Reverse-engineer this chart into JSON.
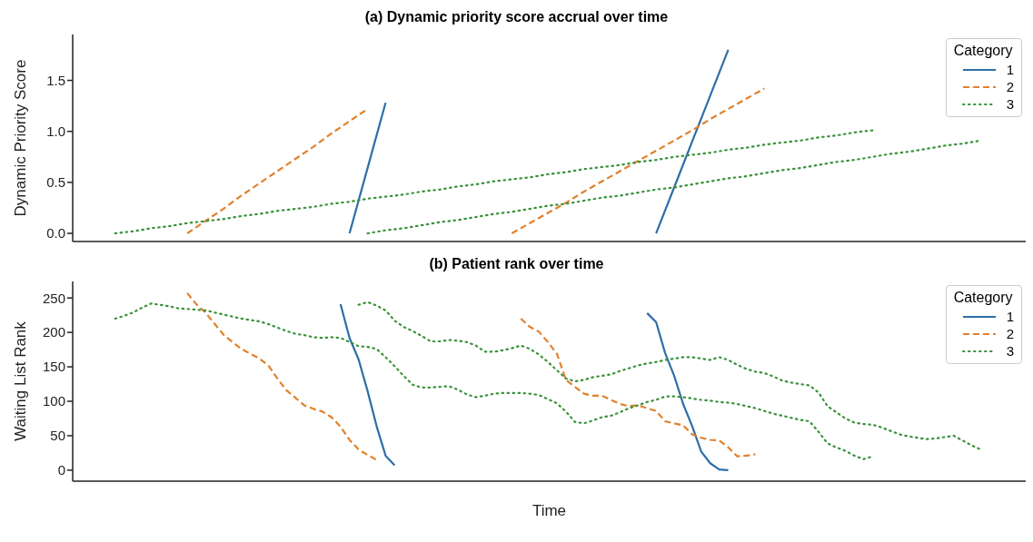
{
  "chart_data": [
    {
      "type": "line",
      "title": "(a) Dynamic priority score accrual over time",
      "ylabel": "Dynamic Priority Score",
      "legend_title": "Category",
      "legend": "top right",
      "tick_labels": "y",
      "ylim": [
        -0.08,
        1.95
      ],
      "yticks": [
        {
          "value": 0,
          "label": "0.0"
        },
        {
          "value": 0.5,
          "label": "0.5"
        },
        {
          "value": 1,
          "label": "1.0"
        },
        {
          "value": 1.5,
          "label": "1.5"
        }
      ],
      "categories": [
        null,
        null,
        null,
        null,
        null,
        null,
        null,
        null,
        null,
        null,
        null,
        null,
        null,
        null,
        null,
        null,
        null,
        null,
        null,
        null,
        null,
        null,
        null,
        null,
        null,
        null,
        null,
        null,
        null,
        null,
        null,
        null,
        null,
        null,
        null,
        null,
        null,
        null,
        null,
        null,
        null,
        null,
        null,
        null,
        null,
        null,
        null,
        null,
        null
      ],
      "series": [
        {
          "name": "1",
          "color": "#2f6ea6",
          "line_style": "solid",
          "values": [
            null,
            null,
            null,
            null,
            null,
            null,
            null,
            null,
            null,
            null,
            null,
            null,
            null,
            0,
            0.64,
            1.28,
            null,
            null,
            null,
            null,
            null,
            null,
            null,
            null,
            null,
            null,
            null,
            null,
            null,
            null,
            null,
            null,
            null,
            null,
            null,
            null,
            null,
            null,
            null,
            null,
            null,
            null,
            null,
            null,
            null,
            null,
            null,
            null,
            null
          ]
        },
        {
          "color": "#2f6ea6",
          "line_style": "solid",
          "values": [
            null,
            null,
            null,
            null,
            null,
            null,
            null,
            null,
            null,
            null,
            null,
            null,
            null,
            null,
            null,
            null,
            null,
            null,
            null,
            null,
            null,
            null,
            null,
            null,
            null,
            null,
            null,
            null,
            null,
            null,
            0,
            0.45,
            0.9,
            1.35,
            1.8,
            null,
            null,
            null,
            null,
            null,
            null,
            null,
            null,
            null,
            null,
            null,
            null,
            null,
            null
          ]
        },
        {
          "name": "2",
          "color": "#e1812c",
          "line_style": "dashed",
          "values": [
            null,
            null,
            null,
            null,
            0,
            0.12,
            0.24,
            0.37,
            0.49,
            0.61,
            0.73,
            0.85,
            0.98,
            1.1,
            1.22,
            null,
            null,
            null,
            null,
            null,
            null,
            null,
            null,
            null,
            null,
            null,
            null,
            null,
            null,
            null,
            null,
            null,
            null,
            null,
            null,
            null,
            null,
            null,
            null,
            null,
            null,
            null,
            null,
            null,
            null,
            null,
            null,
            null,
            null
          ]
        },
        {
          "color": "#e1812c",
          "line_style": "dashed",
          "values": [
            null,
            null,
            null,
            null,
            null,
            null,
            null,
            null,
            null,
            null,
            null,
            null,
            null,
            null,
            null,
            null,
            null,
            null,
            null,
            null,
            null,
            null,
            0,
            0.1,
            0.2,
            0.3,
            0.41,
            0.51,
            0.61,
            0.71,
            0.81,
            0.91,
            1.01,
            1.12,
            1.22,
            1.32,
            1.42,
            null,
            null,
            null,
            null,
            null,
            null,
            null,
            null,
            null,
            null,
            null,
            null
          ]
        },
        {
          "name": "3",
          "color": "#3a923a",
          "line_style": "dotted",
          "values": [
            0,
            0.02,
            0.05,
            0.07,
            0.1,
            0.12,
            0.14,
            0.17,
            0.19,
            0.22,
            0.24,
            0.26,
            0.29,
            0.31,
            0.34,
            0.36,
            0.38,
            0.41,
            0.43,
            0.46,
            0.48,
            0.51,
            0.53,
            0.55,
            0.58,
            0.6,
            0.63,
            0.65,
            0.67,
            0.7,
            0.72,
            0.75,
            0.77,
            0.79,
            0.82,
            0.84,
            0.87,
            0.89,
            0.91,
            0.94,
            0.96,
            0.99,
            1.01,
            null,
            null,
            null,
            null,
            null,
            null
          ]
        },
        {
          "color": "#3a923a",
          "line_style": "dotted",
          "values": [
            null,
            null,
            null,
            null,
            null,
            null,
            null,
            null,
            null,
            null,
            null,
            null,
            null,
            null,
            0,
            0.03,
            0.05,
            0.08,
            0.11,
            0.13,
            0.16,
            0.19,
            0.21,
            0.24,
            0.27,
            0.29,
            0.32,
            0.35,
            0.37,
            0.4,
            0.43,
            0.45,
            0.48,
            0.51,
            0.54,
            0.56,
            0.59,
            0.62,
            0.64,
            0.67,
            0.7,
            0.72,
            0.75,
            0.78,
            0.8,
            0.83,
            0.86,
            0.88,
            0.91
          ]
        }
      ]
    },
    {
      "type": "line",
      "title": "(b) Patient rank over time",
      "xlabel": "Time",
      "ylabel": "Waiting List Rank",
      "legend_title": "Category",
      "legend": "top right",
      "tick_labels": "y",
      "ylim": [
        -16,
        274
      ],
      "yticks": [
        0,
        50,
        100,
        150,
        200,
        250
      ],
      "categories": [
        null,
        null,
        null,
        null,
        null,
        null,
        null,
        null,
        null,
        null,
        null,
        null,
        null,
        null,
        null,
        null,
        null,
        null,
        null,
        null,
        null,
        null,
        null,
        null,
        null,
        null,
        null,
        null,
        null,
        null,
        null,
        null,
        null,
        null,
        null,
        null,
        null,
        null,
        null,
        null,
        null,
        null,
        null,
        null,
        null,
        null,
        null,
        null,
        null,
        null,
        null,
        null,
        null,
        null,
        null,
        null,
        null,
        null,
        null,
        null,
        null,
        null,
        null,
        null,
        null,
        null,
        null,
        null,
        null,
        null,
        null,
        null,
        null,
        null,
        null,
        null,
        null,
        null,
        null,
        null,
        null,
        null,
        null,
        null,
        null,
        null,
        null,
        null,
        null,
        null,
        null,
        null,
        null,
        null,
        null,
        null,
        null
      ],
      "series": [
        {
          "name": "1",
          "color": "#2f6ea6",
          "line_style": "solid",
          "values": [
            null,
            null,
            null,
            null,
            null,
            null,
            null,
            null,
            null,
            null,
            null,
            null,
            null,
            null,
            null,
            null,
            null,
            null,
            null,
            null,
            null,
            null,
            null,
            null,
            null,
            241,
            192,
            161,
            115,
            64,
            21,
            7,
            null,
            null,
            null,
            null,
            null,
            null,
            null,
            null,
            null,
            null,
            null,
            null,
            null,
            null,
            null,
            null,
            null,
            null,
            null,
            null,
            null,
            null,
            null,
            null,
            null,
            null,
            null,
            null,
            null,
            null,
            null,
            null,
            null,
            null,
            null,
            null,
            null,
            null,
            null,
            null,
            null,
            null,
            null,
            null,
            null,
            null,
            null,
            null,
            null,
            null,
            null,
            null,
            null,
            null,
            null,
            null,
            null,
            null,
            null,
            null,
            null,
            null,
            null,
            null,
            null
          ]
        },
        {
          "color": "#2f6ea6",
          "line_style": "solid",
          "values": [
            null,
            null,
            null,
            null,
            null,
            null,
            null,
            null,
            null,
            null,
            null,
            null,
            null,
            null,
            null,
            null,
            null,
            null,
            null,
            null,
            null,
            null,
            null,
            null,
            null,
            null,
            null,
            null,
            null,
            null,
            null,
            null,
            null,
            null,
            null,
            null,
            null,
            null,
            null,
            null,
            null,
            null,
            null,
            null,
            null,
            null,
            null,
            null,
            null,
            null,
            null,
            null,
            null,
            null,
            null,
            null,
            null,
            null,
            null,
            228,
            215,
            170,
            137,
            96,
            64,
            27,
            10,
            1,
            0,
            null,
            null,
            null,
            null,
            null,
            null,
            null,
            null,
            null,
            null,
            null,
            null,
            null,
            null,
            null,
            null,
            null,
            null,
            null,
            null,
            null,
            null,
            null,
            null,
            null,
            null,
            null,
            null
          ]
        },
        {
          "name": "2",
          "color": "#e1812c",
          "line_style": "dashed",
          "values": [
            null,
            null,
            null,
            null,
            null,
            null,
            null,
            null,
            257,
            241,
            229,
            213,
            197,
            186,
            176,
            169,
            162,
            152,
            133,
            116,
            105,
            94,
            89,
            85,
            77,
            63,
            44,
            30,
            22,
            15,
            null,
            null,
            null,
            null,
            null,
            null,
            null,
            null,
            null,
            null,
            null,
            null,
            null,
            null,
            null,
            null,
            null,
            null,
            null,
            null,
            null,
            null,
            null,
            null,
            null,
            null,
            null,
            null,
            null,
            null,
            null,
            null,
            null,
            null,
            null,
            null,
            null,
            null,
            null,
            null,
            null,
            null,
            null,
            null,
            null,
            null,
            null,
            null,
            null,
            null,
            null,
            null,
            null,
            null,
            null,
            null,
            null,
            null,
            null,
            null,
            null,
            null,
            null,
            null,
            null,
            null,
            null
          ]
        },
        {
          "color": "#e1812c",
          "line_style": "dashed",
          "values": [
            null,
            null,
            null,
            null,
            null,
            null,
            null,
            null,
            null,
            null,
            null,
            null,
            null,
            null,
            null,
            null,
            null,
            null,
            null,
            null,
            null,
            null,
            null,
            null,
            null,
            null,
            null,
            null,
            null,
            null,
            null,
            null,
            null,
            null,
            null,
            null,
            null,
            null,
            null,
            null,
            null,
            null,
            null,
            null,
            null,
            220,
            208,
            201,
            186,
            169,
            131,
            121,
            111,
            108,
            108,
            102,
            96,
            93,
            94,
            90,
            86,
            71,
            68,
            65,
            52,
            47,
            44,
            43,
            33,
            20,
            21,
            23,
            null,
            null,
            null,
            null,
            null,
            null,
            null,
            null,
            null,
            null,
            null,
            null,
            null,
            null,
            null,
            null,
            null,
            null,
            null,
            null,
            null,
            null,
            null,
            null,
            null
          ]
        },
        {
          "name": "3",
          "color": "#3a923a",
          "line_style": "dotted",
          "values": [
            220,
            224,
            229,
            236,
            242,
            240,
            238,
            235,
            234,
            233,
            232,
            229,
            226,
            223,
            220,
            218,
            216,
            212,
            207,
            202,
            198,
            196,
            193,
            192,
            193,
            192,
            186,
            180,
            179,
            176,
            164,
            151,
            137,
            124,
            120,
            120,
            121,
            122,
            117,
            110,
            106,
            108,
            111,
            112,
            112,
            112,
            111,
            109,
            103,
            97,
            85,
            70,
            68,
            72,
            77,
            79,
            84,
            90,
            94,
            99,
            102,
            107,
            107,
            106,
            104,
            102,
            101,
            99,
            98,
            96,
            93,
            90,
            86,
            82,
            79,
            76,
            73,
            71,
            56,
            39,
            33,
            28,
            21,
            16,
            20,
            null,
            null,
            null,
            null,
            null,
            null,
            null,
            null,
            null,
            null,
            null,
            null
          ]
        },
        {
          "color": "#3a923a",
          "line_style": "dotted",
          "values": [
            null,
            null,
            null,
            null,
            null,
            null,
            null,
            null,
            null,
            null,
            null,
            null,
            null,
            null,
            null,
            null,
            null,
            null,
            null,
            null,
            null,
            null,
            null,
            null,
            null,
            null,
            null,
            240,
            244,
            239,
            232,
            217,
            208,
            202,
            195,
            187,
            187,
            189,
            188,
            186,
            181,
            172,
            172,
            174,
            177,
            181,
            176,
            168,
            157,
            145,
            133,
            129,
            131,
            135,
            137,
            139,
            144,
            148,
            152,
            155,
            157,
            160,
            162,
            164,
            164,
            162,
            160,
            164,
            160,
            153,
            147,
            143,
            141,
            136,
            130,
            127,
            125,
            123,
            113,
            93,
            84,
            75,
            69,
            67,
            66,
            62,
            57,
            52,
            49,
            47,
            45,
            46,
            48,
            50,
            43,
            36,
            30
          ]
        }
      ]
    }
  ]
}
